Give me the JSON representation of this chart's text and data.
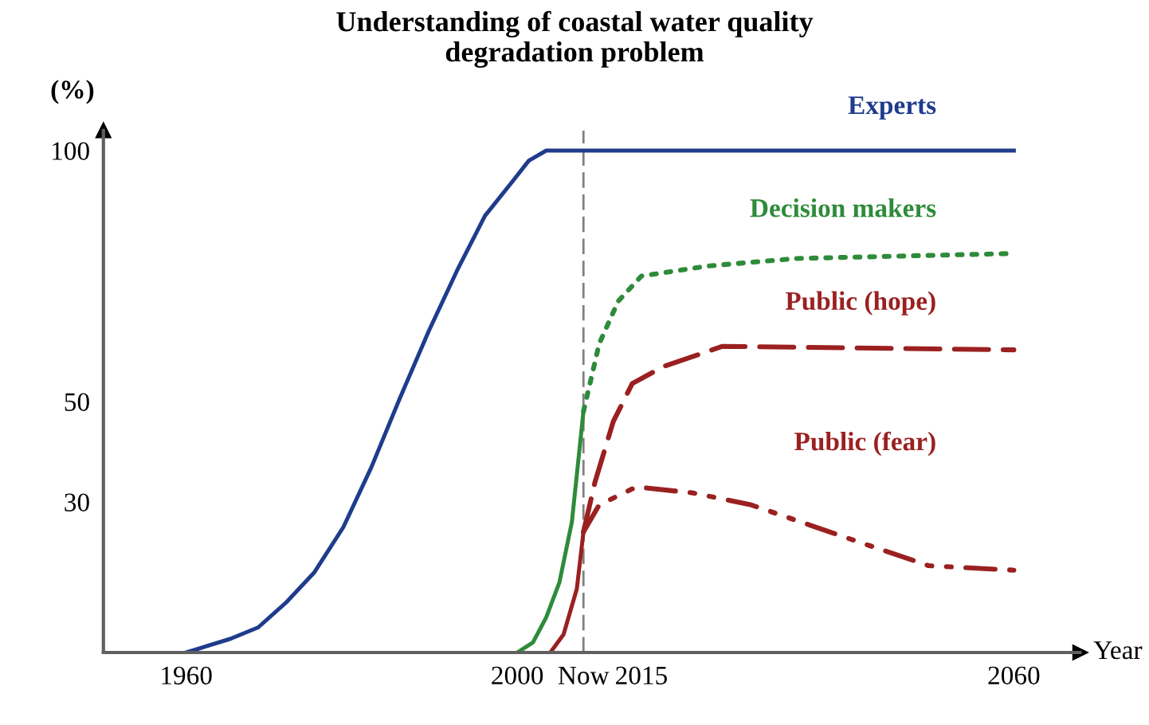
{
  "chart_data": {
    "type": "line",
    "title": "Understanding of coastal water quality\ndegradation problem",
    "ylabel": "(%)",
    "xlabel": "Year",
    "xlim": [
      1950,
      2068
    ],
    "ylim": [
      0,
      104
    ],
    "xticks": [
      1960,
      2000,
      {
        "value": 2008,
        "label": "Now"
      },
      2015,
      2060
    ],
    "yticks": [
      30,
      50,
      100
    ],
    "grid": false,
    "legend": false,
    "ref_lines": [
      {
        "axis": "x",
        "value": 2008,
        "label": null,
        "color": "#808080",
        "line_style": "dashed"
      }
    ],
    "series": [
      {
        "name": "Experts",
        "color": "#1f3c8c",
        "line_style": "solid",
        "x": [
          1960,
          1965.3,
          1968.7,
          1972.1,
          1975.5,
          1979,
          1982.4,
          1985.8,
          1989.3,
          1992.7,
          1996.1,
          1999.5,
          2001.4,
          2003.5,
          2008,
          2060
        ],
        "values": [
          0,
          2.7,
          5,
          10,
          16,
          25,
          37,
          50.6,
          64,
          76,
          87,
          94,
          98,
          100,
          100,
          100
        ]
      },
      {
        "color": "#2e8b3a",
        "line_style": "solid",
        "x": [
          2000,
          2001.9,
          2003.5,
          2005.1,
          2006.6,
          2008
        ],
        "values": [
          0,
          2,
          7,
          14,
          26,
          48
        ]
      },
      {
        "name": "Decision makers",
        "color": "#2e8b3a",
        "line_style": "dotted",
        "x": [
          2008,
          2009.9,
          2012.2,
          2015,
          2023,
          2033.7,
          2060
        ],
        "values": [
          48,
          61.5,
          70,
          75,
          77,
          78.5,
          79.5
        ]
      },
      {
        "color": "#9b2020",
        "line_style": "solid",
        "x": [
          2004,
          2005.6,
          2007.2,
          2008
        ],
        "values": [
          0,
          3.6,
          12.7,
          24
        ]
      },
      {
        "name": "Public (hope)",
        "color": "#9b2020",
        "line_style": "dashed",
        "x": [
          2008,
          2009.4,
          2011.6,
          2013.9,
          2017.7,
          2024.8,
          2060
        ],
        "values": [
          24,
          34,
          46,
          53.6,
          57,
          61,
          60.3
        ]
      },
      {
        "name": "Public (fear)",
        "color": "#9b2020",
        "line_style": "dashdot",
        "x": [
          2008,
          2009.9,
          2014.4,
          2021.2,
          2028.3,
          2039,
          2049.7,
          2060
        ],
        "values": [
          24,
          29.4,
          33,
          31.8,
          29.4,
          23.3,
          17.3,
          16.4
        ]
      }
    ]
  }
}
